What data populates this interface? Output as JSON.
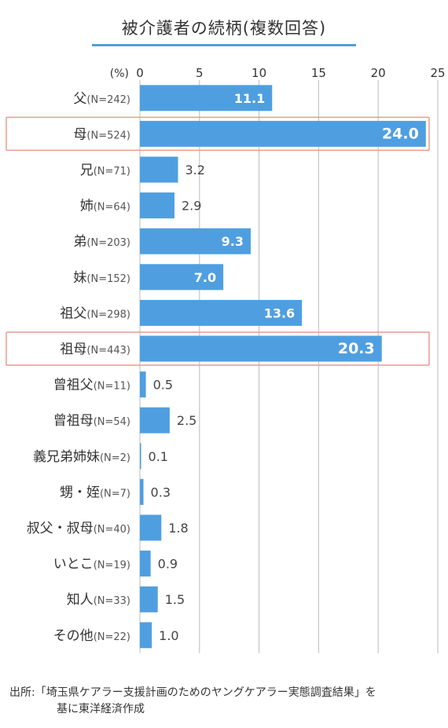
{
  "colors": {
    "bar": "#4f9fe0",
    "highlight_border": "#e99a90",
    "axis": "#bbbbbb",
    "title_line": "#4f9fe0"
  },
  "chart_data": {
    "type": "bar",
    "orientation": "horizontal",
    "title": "被介護者の続柄(複数回答)",
    "unit": "(%)",
    "xlim": [
      0,
      25
    ],
    "ticks": [
      "0",
      "5",
      "10",
      "15",
      "20",
      "25"
    ],
    "grid": true,
    "categories": [
      {
        "name": "父",
        "n": "(N=242)",
        "value": 11.1,
        "label": "11.1",
        "highlight": false
      },
      {
        "name": "母",
        "n": "(N=524)",
        "value": 24.0,
        "label": "24.0",
        "highlight": true
      },
      {
        "name": "兄",
        "n": "(N=71)",
        "value": 3.2,
        "label": "3.2",
        "highlight": false
      },
      {
        "name": "姉",
        "n": "(N=64)",
        "value": 2.9,
        "label": "2.9",
        "highlight": false
      },
      {
        "name": "弟",
        "n": "(N=203)",
        "value": 9.3,
        "label": "9.3",
        "highlight": false
      },
      {
        "name": "妹",
        "n": "(N=152)",
        "value": 7.0,
        "label": "7.0",
        "highlight": false
      },
      {
        "name": "祖父",
        "n": "(N=298)",
        "value": 13.6,
        "label": "13.6",
        "highlight": false
      },
      {
        "name": "祖母",
        "n": "(N=443)",
        "value": 20.3,
        "label": "20.3",
        "highlight": true
      },
      {
        "name": "曾祖父",
        "n": "(N=11)",
        "value": 0.5,
        "label": "0.5",
        "highlight": false
      },
      {
        "name": "曾祖母",
        "n": "(N=54)",
        "value": 2.5,
        "label": "2.5",
        "highlight": false
      },
      {
        "name": "義兄弟姉妹",
        "n": "(N=2)",
        "value": 0.1,
        "label": "0.1",
        "highlight": false
      },
      {
        "name": "甥・姪",
        "n": "(N=7)",
        "value": 0.3,
        "label": "0.3",
        "highlight": false
      },
      {
        "name": "叔父・叔母",
        "n": "(N=40)",
        "value": 1.8,
        "label": "1.8",
        "highlight": false
      },
      {
        "name": "いとこ",
        "n": "(N=19)",
        "value": 0.9,
        "label": "0.9",
        "highlight": false
      },
      {
        "name": "知人",
        "n": "(N=33)",
        "value": 1.5,
        "label": "1.5",
        "highlight": false
      },
      {
        "name": "その他",
        "n": "(N=22)",
        "value": 1.0,
        "label": "1.0",
        "highlight": false
      }
    ]
  },
  "source": {
    "line1": "出所:「埼玉県ケアラー支援計画のためのヤングケアラー実態調査結果」を",
    "line2": "基に東洋経済作成"
  }
}
